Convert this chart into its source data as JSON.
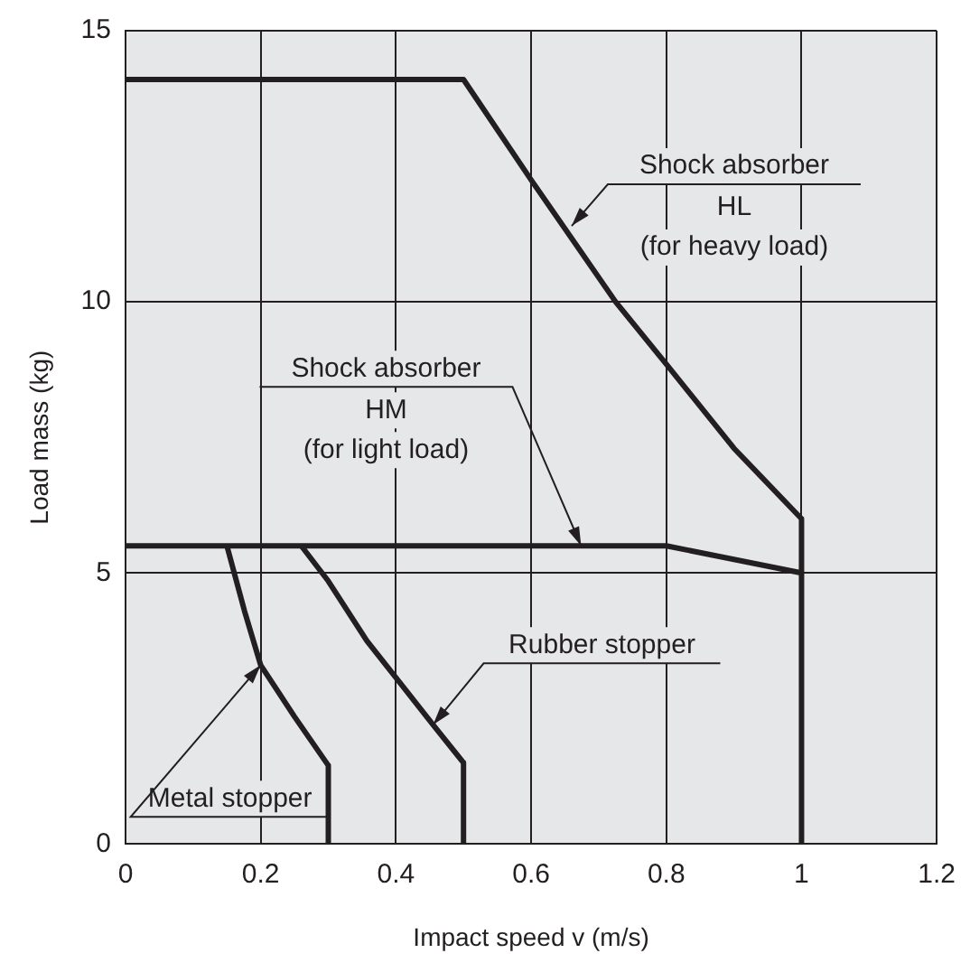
{
  "chart_data": {
    "type": "line",
    "xlabel": "Impact speed v (m/s)",
    "ylabel": "Load mass (kg)",
    "xlim": [
      0,
      1.2
    ],
    "xticks": [
      0,
      0.2,
      0.4,
      0.6,
      0.8,
      1,
      1.2
    ],
    "ylim": [
      0,
      15
    ],
    "yticks": [
      0,
      5,
      10,
      15
    ],
    "grid": true,
    "legend": false,
    "marker": "none",
    "line_style": "solid",
    "series": [
      {
        "color": "#231f20",
        "x": [
          0,
          0.5,
          0.6,
          0.725,
          0.8,
          0.9,
          1,
          1
        ],
        "values": [
          14.1,
          14.1,
          12.25,
          10,
          8.85,
          7.3,
          6,
          0
        ]
      },
      {
        "color": "#231f20",
        "x": [
          0,
          0.8,
          1
        ],
        "values": [
          5.5,
          5.5,
          5
        ]
      },
      {
        "color": "#231f20",
        "x": [
          0.26,
          0.3,
          0.357,
          0.455,
          0.5,
          0.5
        ],
        "values": [
          5.5,
          4.85,
          3.75,
          2.2,
          1.5,
          0
        ]
      },
      {
        "color": "#231f20",
        "x": [
          0.15,
          0.176,
          0.2,
          0.25,
          0.3,
          0.3
        ],
        "values": [
          5.5,
          4.3,
          3.3,
          2.35,
          1.45,
          0
        ]
      }
    ],
    "annotations": [
      {
        "text": "Shock absorber\nHL\n(for heavy load)",
        "x": 0.66,
        "y": 11.4
      },
      {
        "text": "Shock absorber\nHM\n(for light load)",
        "x": 0.674,
        "y": 5.5
      },
      {
        "text": "Rubber stopper",
        "x": 0.455,
        "y": 2.2
      },
      {
        "text": "Metal stopper",
        "x": 0.2,
        "y": 3.3
      }
    ]
  }
}
